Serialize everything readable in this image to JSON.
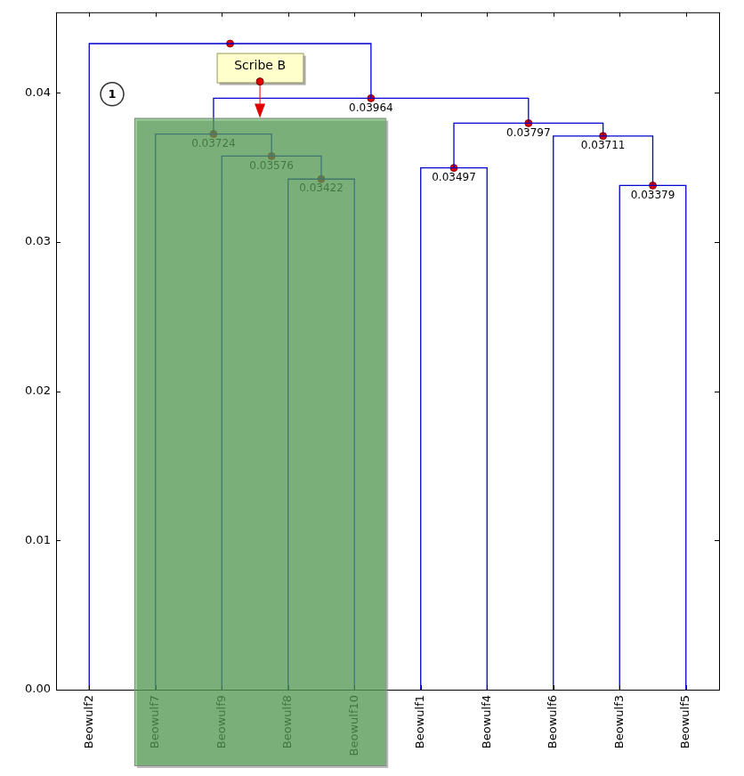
{
  "chart_data": {
    "type": "dendrogram",
    "categories": [
      "Beowulf2",
      "Beowulf7",
      "Beowulf9",
      "Beowulf8",
      "Beowulf10",
      "Beowulf1",
      "Beowulf4",
      "Beowulf6",
      "Beowulf3",
      "Beowulf5"
    ],
    "merges": [
      {
        "children": [
          3,
          4
        ],
        "height": 0.03422,
        "label": "0.03422"
      },
      {
        "children": [
          2,
          10
        ],
        "height": 0.03576,
        "label": "0.03576"
      },
      {
        "children": [
          1,
          11
        ],
        "height": 0.03724,
        "label": "0.03724"
      },
      {
        "children": [
          8,
          9
        ],
        "height": 0.03379,
        "label": "0.03379"
      },
      {
        "children": [
          7,
          13
        ],
        "height": 0.03711,
        "label": "0.03711"
      },
      {
        "children": [
          5,
          6
        ],
        "height": 0.03497,
        "label": "0.03497"
      },
      {
        "children": [
          15,
          14
        ],
        "height": 0.03797,
        "label": "0.03797"
      },
      {
        "children": [
          12,
          16
        ],
        "height": 0.03964,
        "label": "0.03964"
      },
      {
        "children": [
          0,
          17
        ],
        "height": 0.0433
      }
    ],
    "ylim": [
      0,
      0.0454
    ],
    "yticks": [
      {
        "value": 0,
        "label": "0.00"
      },
      {
        "value": 0.01,
        "label": "0.01"
      },
      {
        "value": 0.02,
        "label": "0.02"
      },
      {
        "value": 0.03,
        "label": "0.03"
      },
      {
        "value": 0.04,
        "label": "0.04"
      }
    ],
    "grid": false,
    "color": "#0000cc",
    "marker": "circle",
    "data_labels": true,
    "annotations": [
      {
        "type": "callout",
        "text": "Scribe B",
        "leaves": [
          "Beowulf7",
          "Beowulf9",
          "Beowulf8",
          "Beowulf10"
        ]
      },
      {
        "type": "circle",
        "text": "1"
      }
    ]
  }
}
